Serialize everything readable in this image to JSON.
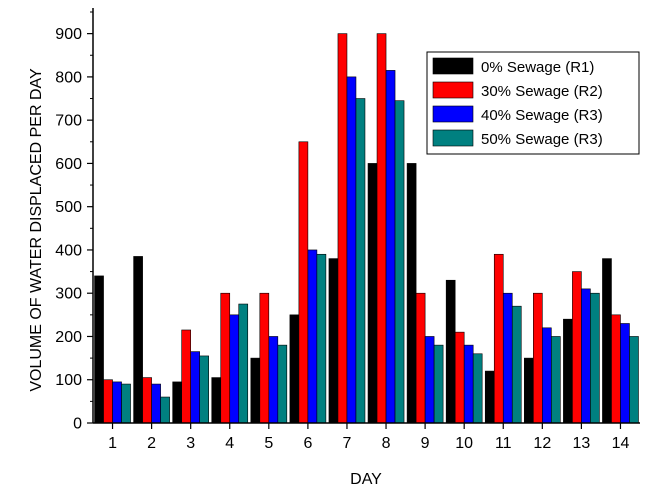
{
  "chart_data": {
    "type": "bar",
    "xlabel": "DAY",
    "ylabel": "VOLUME OF WATER DISPLACED PER DAY",
    "ylim": [
      0,
      950
    ],
    "yticks": [
      0,
      100,
      200,
      300,
      400,
      500,
      600,
      700,
      800,
      900
    ],
    "categories": [
      "1",
      "2",
      "3",
      "4",
      "5",
      "6",
      "7",
      "8",
      "9",
      "10",
      "11",
      "12",
      "13",
      "14"
    ],
    "legend_position": "top-right",
    "grid": false,
    "series": [
      {
        "name": "0% Sewage (R1)",
        "color": "#000000",
        "values": [
          340,
          385,
          95,
          105,
          150,
          250,
          380,
          600,
          600,
          330,
          120,
          150,
          240,
          380
        ]
      },
      {
        "name": "30% Sewage (R2)",
        "color": "#ff0000",
        "values": [
          100,
          105,
          215,
          300,
          300,
          650,
          900,
          900,
          300,
          210,
          390,
          300,
          350,
          250
        ]
      },
      {
        "name": "40% Sewage (R3)",
        "color": "#0000ff",
        "values": [
          95,
          90,
          165,
          250,
          200,
          400,
          800,
          815,
          200,
          180,
          300,
          220,
          310,
          230
        ]
      },
      {
        "name": "50% Sewage (R3)",
        "color": "#008080",
        "values": [
          90,
          60,
          155,
          275,
          180,
          390,
          750,
          745,
          180,
          160,
          270,
          200,
          300,
          200
        ]
      }
    ]
  }
}
